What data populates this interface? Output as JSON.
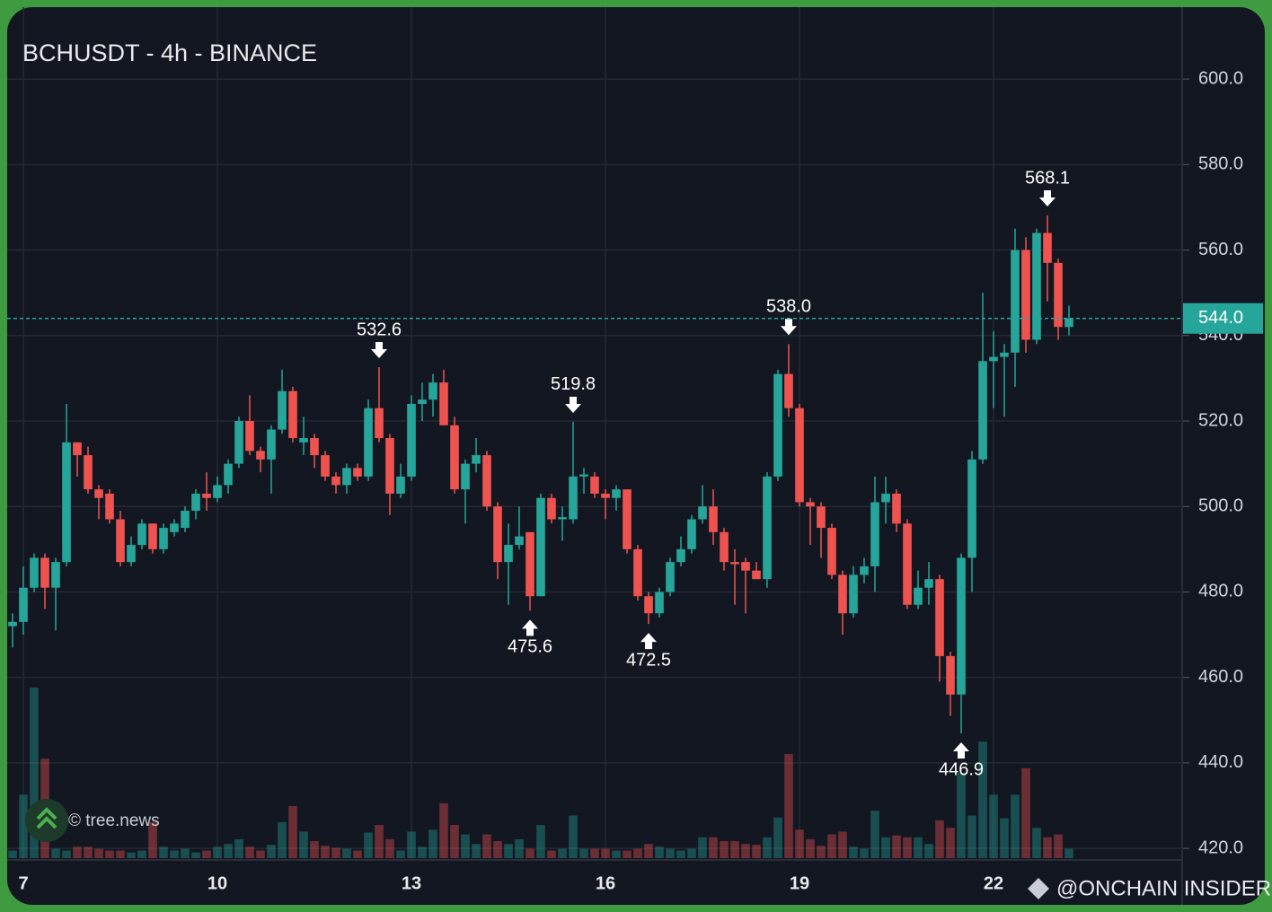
{
  "chart_data": {
    "type": "candlestick",
    "title": "BCHUSDT - 4h - BINANCE",
    "open": [
      472,
      473,
      481,
      488,
      481,
      487,
      515,
      512,
      504,
      503,
      497,
      487,
      491,
      496,
      490,
      494,
      495,
      499,
      503,
      502,
      505,
      510,
      520,
      513,
      511,
      518,
      527,
      515,
      516,
      512,
      507,
      505,
      509,
      507,
      523,
      516,
      503,
      507,
      524,
      525,
      529,
      519,
      504,
      510,
      512,
      500,
      487,
      491,
      494,
      479,
      502,
      497,
      497,
      507,
      507,
      503,
      502,
      504,
      490,
      479,
      475,
      480,
      487,
      490,
      497,
      500,
      494,
      487,
      487,
      485,
      483,
      507,
      531,
      523,
      501,
      500,
      495,
      484,
      475,
      484,
      486,
      501,
      503,
      496,
      477,
      481,
      483,
      465,
      456,
      488,
      511,
      534,
      535,
      536,
      560,
      539,
      564,
      557,
      542
    ],
    "high": [
      475,
      486,
      489,
      489,
      488,
      524,
      515,
      514,
      505,
      504,
      499,
      493,
      497,
      496,
      496,
      497,
      500,
      504,
      508,
      507,
      511,
      521,
      526,
      514,
      519,
      532,
      528,
      521,
      517,
      513,
      508,
      510,
      510,
      525,
      532.6,
      517,
      510,
      526,
      529,
      531,
      532,
      521,
      511,
      516,
      513,
      501,
      496,
      500,
      494,
      503,
      503,
      500,
      519.8,
      509,
      508,
      504,
      505,
      504,
      491,
      480,
      481,
      488,
      493,
      498,
      505,
      504,
      495,
      490,
      488,
      487,
      508,
      532,
      538,
      524,
      502,
      501,
      496,
      485,
      486,
      488,
      507,
      507,
      504,
      497,
      485,
      487,
      484,
      466,
      489,
      513,
      550,
      541,
      538,
      565,
      563,
      565,
      568.1,
      558,
      547
    ],
    "low": [
      467,
      470,
      480,
      476,
      471,
      486,
      507,
      503,
      497,
      496,
      486,
      486,
      490,
      489,
      489,
      493,
      494,
      497,
      499,
      501,
      503,
      509,
      512,
      508,
      503,
      517,
      515,
      512,
      509,
      506,
      503,
      503,
      506,
      506,
      515,
      498,
      502,
      506,
      520,
      521,
      519,
      503,
      496,
      508,
      499,
      483,
      477,
      490,
      475.6,
      479,
      496,
      492,
      496,
      503,
      502,
      497,
      499,
      489,
      478,
      472.5,
      474,
      479,
      486,
      489,
      496,
      491,
      485,
      477,
      475,
      483,
      481,
      506,
      521,
      500,
      491,
      488,
      483,
      470,
      474,
      482,
      480,
      496,
      494,
      476,
      476,
      477,
      459,
      451,
      446.9,
      480,
      510,
      523,
      521,
      528,
      536,
      538,
      548,
      539,
      540
    ],
    "close": [
      473,
      481,
      488,
      481,
      487,
      515,
      512,
      504,
      502,
      497,
      487,
      491,
      496,
      490,
      495,
      496,
      499,
      503,
      502,
      505,
      510,
      520,
      513,
      511,
      518,
      527,
      516,
      516,
      512,
      507,
      505,
      509,
      507,
      523,
      516,
      503,
      507,
      524,
      525,
      529,
      519,
      504,
      510,
      512,
      500,
      487,
      491,
      493,
      479,
      502,
      497,
      497.5,
      507,
      507.5,
      503,
      502,
      504,
      490,
      479,
      475,
      480,
      487,
      490,
      497,
      500,
      494,
      487,
      486.5,
      485,
      483,
      507,
      531,
      523,
      501,
      500,
      495,
      484,
      475,
      484,
      486,
      501,
      503,
      496,
      477,
      481,
      483,
      465,
      456,
      488,
      511,
      534,
      535,
      536,
      560,
      539,
      564,
      557,
      542,
      544
    ],
    "volumes": [
      8,
      67,
      180,
      105,
      10,
      8,
      12,
      12,
      10,
      8,
      8,
      6,
      8,
      38,
      12,
      8,
      10,
      6,
      8,
      12,
      15,
      20,
      12,
      8,
      14,
      38,
      55,
      28,
      18,
      13,
      11,
      10,
      8,
      27,
      35,
      20,
      8,
      28,
      12,
      30,
      58,
      35,
      25,
      15,
      25,
      18,
      15,
      20,
      10,
      35,
      8,
      10,
      45,
      10,
      10,
      10,
      8,
      8,
      10,
      15,
      12,
      10,
      8,
      10,
      22,
      22,
      18,
      18,
      15,
      14,
      22,
      43,
      110,
      30,
      20,
      13,
      25,
      28,
      12,
      10,
      50,
      22,
      24,
      22,
      22,
      15,
      40,
      32,
      90,
      45,
      123,
      67,
      42,
      67,
      95,
      32,
      22,
      25,
      10
    ],
    "high_labels": [
      null,
      null,
      null,
      null,
      null,
      null,
      null,
      null,
      null,
      null,
      null,
      null,
      null,
      null,
      null,
      null,
      null,
      null,
      null,
      null,
      null,
      null,
      null,
      null,
      null,
      null,
      null,
      null,
      null,
      null,
      null,
      null,
      null,
      null,
      "532.6",
      null,
      null,
      null,
      null,
      null,
      null,
      null,
      null,
      null,
      null,
      null,
      null,
      null,
      null,
      null,
      null,
      null,
      "519.8",
      null,
      null,
      null,
      null,
      null,
      null,
      null,
      null,
      null,
      null,
      null,
      null,
      null,
      null,
      null,
      null,
      null,
      null,
      null,
      "538.0",
      null,
      null,
      null,
      null,
      null,
      null,
      null,
      null,
      null,
      null,
      null,
      null,
      null,
      null,
      null,
      null,
      null,
      null,
      null,
      null,
      null,
      null,
      null,
      "568.1",
      null,
      null
    ],
    "low_labels": [
      null,
      null,
      null,
      null,
      null,
      null,
      null,
      null,
      null,
      null,
      null,
      null,
      null,
      null,
      null,
      null,
      null,
      null,
      null,
      null,
      null,
      null,
      null,
      null,
      null,
      null,
      null,
      null,
      null,
      null,
      null,
      null,
      null,
      null,
      null,
      null,
      null,
      null,
      null,
      null,
      null,
      null,
      null,
      null,
      null,
      null,
      null,
      null,
      "475.6",
      null,
      null,
      null,
      null,
      null,
      null,
      null,
      null,
      null,
      null,
      "472.5",
      null,
      null,
      null,
      null,
      null,
      null,
      null,
      null,
      null,
      null,
      null,
      null,
      null,
      null,
      null,
      null,
      null,
      null,
      null,
      null,
      null,
      null,
      null,
      null,
      null,
      null,
      null,
      null,
      "446.9",
      null,
      null,
      null,
      null,
      null,
      null,
      null,
      null,
      null,
      null
    ],
    "up_color": "#26a69a",
    "down_color": "#ef5350",
    "xlim": [
      -0.5,
      108.5
    ],
    "xticks": [
      {
        "value": 1,
        "label": "7"
      },
      {
        "value": 19,
        "label": "10"
      },
      {
        "value": 37,
        "label": "13"
      },
      {
        "value": 55,
        "label": "16"
      },
      {
        "value": 73,
        "label": "19"
      },
      {
        "value": 91,
        "label": "22"
      }
    ],
    "ylim": [
      417.3,
      616.4
    ],
    "yticks": [
      {
        "value": 420,
        "label": "420.0"
      },
      {
        "value": 440,
        "label": "440.0"
      },
      {
        "value": 460,
        "label": "460.0"
      },
      {
        "value": 480,
        "label": "480.0"
      },
      {
        "value": 500,
        "label": "500.0"
      },
      {
        "value": 520,
        "label": "520.0"
      },
      {
        "value": 540,
        "label": "540.0"
      },
      {
        "value": 560,
        "label": "560.0"
      },
      {
        "value": 580,
        "label": "580.0"
      },
      {
        "value": 600,
        "label": "600.0"
      }
    ],
    "last_price": {
      "value": 544,
      "label": "544.0"
    },
    "grid": true,
    "watermark": "© tree.news",
    "credit": "@ONCHAIN INSIDER"
  }
}
